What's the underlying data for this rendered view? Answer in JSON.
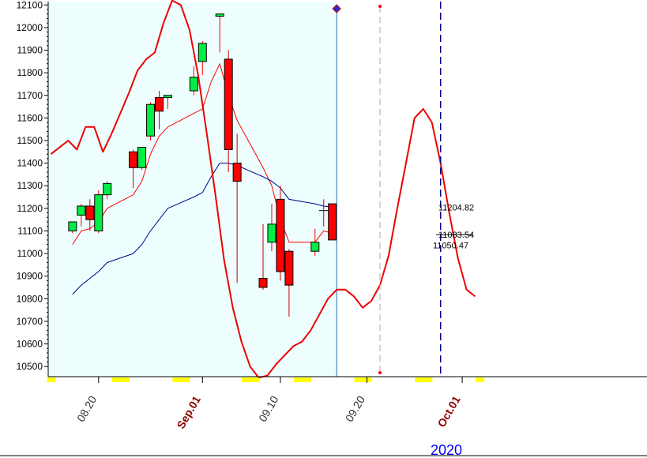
{
  "chart_data": {
    "type": "candlestick",
    "year_label": "2020",
    "y_ticks": [
      10500,
      10600,
      10700,
      10800,
      10900,
      11000,
      11100,
      11200,
      11300,
      11400,
      11500,
      11600,
      11700,
      11800,
      11900,
      12000,
      12100
    ],
    "ylim": [
      10455,
      12115
    ],
    "x_tick_labels": [
      {
        "text": "08.20",
        "day": 20,
        "emphasis": false
      },
      {
        "text": "Sep.01",
        "day": 32,
        "emphasis": true
      },
      {
        "text": "09.10",
        "day": 41,
        "emphasis": false
      },
      {
        "text": "09.20",
        "day": 51,
        "emphasis": false
      },
      {
        "text": "Oct.01",
        "day": 62,
        "emphasis": true
      }
    ],
    "highlight_end_day": 47.5,
    "marker_days": [
      47.5,
      52.5,
      59.5
    ],
    "candles": [
      {
        "day": 17,
        "open": 11100,
        "high": 11140,
        "low": 11090,
        "close": 11140,
        "dir": "up"
      },
      {
        "day": 18,
        "open": 11170,
        "high": 11220,
        "low": 11120,
        "close": 11210,
        "dir": "up"
      },
      {
        "day": 19,
        "open": 11210,
        "high": 11240,
        "low": 11100,
        "close": 11150,
        "dir": "down"
      },
      {
        "day": 20,
        "open": 11100,
        "high": 11280,
        "low": 11090,
        "close": 11260,
        "dir": "up"
      },
      {
        "day": 21,
        "open": 11260,
        "high": 11320,
        "low": 11240,
        "close": 11310,
        "dir": "up"
      },
      {
        "day": 24,
        "open": 11450,
        "high": 11460,
        "low": 11290,
        "close": 11380,
        "dir": "down"
      },
      {
        "day": 25,
        "open": 11380,
        "high": 11470,
        "low": 11370,
        "close": 11470,
        "dir": "up"
      },
      {
        "day": 26,
        "open": 11520,
        "high": 11670,
        "low": 11500,
        "close": 11660,
        "dir": "up"
      },
      {
        "day": 27,
        "open": 11690,
        "high": 11720,
        "low": 11550,
        "close": 11630,
        "dir": "down"
      },
      {
        "day": 28,
        "open": 11690,
        "high": 11700,
        "low": 11640,
        "close": 11700,
        "dir": "up"
      },
      {
        "day": 31,
        "open": 11720,
        "high": 11830,
        "low": 11700,
        "close": 11780,
        "dir": "up"
      },
      {
        "day": 32,
        "open": 11850,
        "high": 11940,
        "low": 11790,
        "close": 11930,
        "dir": "up"
      },
      {
        "day": 34,
        "open": 12050,
        "high": 12060,
        "low": 11890,
        "close": 12060,
        "dir": "up"
      },
      {
        "day": 35,
        "open": 11860,
        "high": 11900,
        "low": 11360,
        "close": 11460,
        "dir": "down"
      },
      {
        "day": 36,
        "open": 11400,
        "high": 11530,
        "low": 10870,
        "close": 11320,
        "dir": "down"
      },
      {
        "day": 39,
        "open": 10890,
        "high": 11130,
        "low": 10840,
        "close": 10850,
        "dir": "down"
      },
      {
        "day": 40,
        "open": 11050,
        "high": 11220,
        "low": 11010,
        "close": 11130,
        "dir": "up"
      },
      {
        "day": 41,
        "open": 11240,
        "high": 11300,
        "low": 10880,
        "close": 10920,
        "dir": "down"
      },
      {
        "day": 42,
        "open": 11010,
        "high": 11020,
        "low": 10720,
        "close": 10860,
        "dir": "down"
      },
      {
        "day": 45,
        "open": 11010,
        "high": 11110,
        "low": 10990,
        "close": 11050,
        "dir": "up"
      },
      {
        "day": 46,
        "open": 11190,
        "high": 11240,
        "low": 11120,
        "close": 11190,
        "dir": "doji"
      },
      {
        "day": 47,
        "open": 11220,
        "high": 11220,
        "low": 11060,
        "close": 11060,
        "dir": "down"
      }
    ],
    "series": [
      {
        "name": "",
        "color": "#ff0000",
        "width": 1,
        "points": [
          [
            17,
            11040
          ],
          [
            18,
            11100
          ],
          [
            19,
            11110
          ],
          [
            20,
            11140
          ],
          [
            21,
            11200
          ],
          [
            24,
            11260
          ],
          [
            25,
            11320
          ],
          [
            26,
            11440
          ],
          [
            27,
            11520
          ],
          [
            28,
            11560
          ],
          [
            31,
            11620
          ],
          [
            32,
            11640
          ],
          [
            33,
            11760
          ],
          [
            34,
            11840
          ],
          [
            35,
            11700
          ],
          [
            36,
            11590
          ],
          [
            39,
            11380
          ],
          [
            40,
            11300
          ],
          [
            41,
            11150
          ],
          [
            42,
            11050
          ],
          [
            45,
            11050
          ],
          [
            46,
            11100
          ],
          [
            47,
            11090
          ]
        ]
      },
      {
        "name": "",
        "color": "#00008b",
        "width": 1,
        "points": [
          [
            17,
            10820
          ],
          [
            18,
            10860
          ],
          [
            19,
            10890
          ],
          [
            20,
            10920
          ],
          [
            21,
            10960
          ],
          [
            24,
            11000
          ],
          [
            25,
            11040
          ],
          [
            26,
            11100
          ],
          [
            27,
            11150
          ],
          [
            28,
            11200
          ],
          [
            31,
            11250
          ],
          [
            32,
            11270
          ],
          [
            33,
            11340
          ],
          [
            34,
            11400
          ],
          [
            35,
            11400
          ],
          [
            36,
            11390
          ],
          [
            39,
            11340
          ],
          [
            40,
            11320
          ],
          [
            41,
            11290
          ],
          [
            42,
            11240
          ],
          [
            45,
            11220
          ],
          [
            46,
            11210
          ],
          [
            47,
            11205
          ]
        ]
      },
      {
        "name": "",
        "color": "#ee0000",
        "width": 2,
        "points": [
          [
            14.5,
            11440
          ],
          [
            15.5,
            11470
          ],
          [
            16.5,
            11500
          ],
          [
            17.5,
            11460
          ],
          [
            18.5,
            11560
          ],
          [
            19.5,
            11560
          ],
          [
            20.5,
            11450
          ],
          [
            21.5,
            11530
          ],
          [
            22.5,
            11620
          ],
          [
            23.5,
            11710
          ],
          [
            24.5,
            11810
          ],
          [
            25.5,
            11860
          ],
          [
            26.5,
            11890
          ],
          [
            27.5,
            12020
          ],
          [
            28.5,
            12120
          ],
          [
            29.5,
            12100
          ],
          [
            30.5,
            11990
          ],
          [
            31.5,
            11790
          ],
          [
            32.5,
            11530
          ],
          [
            33.5,
            11260
          ],
          [
            34.5,
            10970
          ],
          [
            35.5,
            10760
          ],
          [
            36.5,
            10610
          ],
          [
            37.5,
            10500
          ],
          [
            38.5,
            10450
          ],
          [
            39.5,
            10460
          ],
          [
            40.5,
            10510
          ],
          [
            41.5,
            10550
          ],
          [
            42.5,
            10590
          ],
          [
            43.5,
            10610
          ],
          [
            44.5,
            10660
          ],
          [
            45.5,
            10730
          ],
          [
            46.5,
            10800
          ],
          [
            47.5,
            10840
          ],
          [
            48.5,
            10840
          ],
          [
            49.5,
            10810
          ],
          [
            50.5,
            10760
          ],
          [
            51.5,
            10790
          ],
          [
            52.5,
            10860
          ],
          [
            53.5,
            10990
          ],
          [
            54.5,
            11200
          ],
          [
            55.5,
            11400
          ],
          [
            56.5,
            11600
          ],
          [
            57.5,
            11640
          ],
          [
            58.5,
            11580
          ],
          [
            59.5,
            11400
          ],
          [
            60.5,
            11180
          ],
          [
            61.5,
            10980
          ],
          [
            62.5,
            10840
          ],
          [
            63.5,
            10810
          ]
        ]
      }
    ],
    "price_labels": [
      {
        "text": "11204.82",
        "value": 11204.82
      },
      {
        "text": "11083.54",
        "value": 11083.54
      },
      {
        "text": "11050.47",
        "value": 11050.47
      }
    ]
  }
}
